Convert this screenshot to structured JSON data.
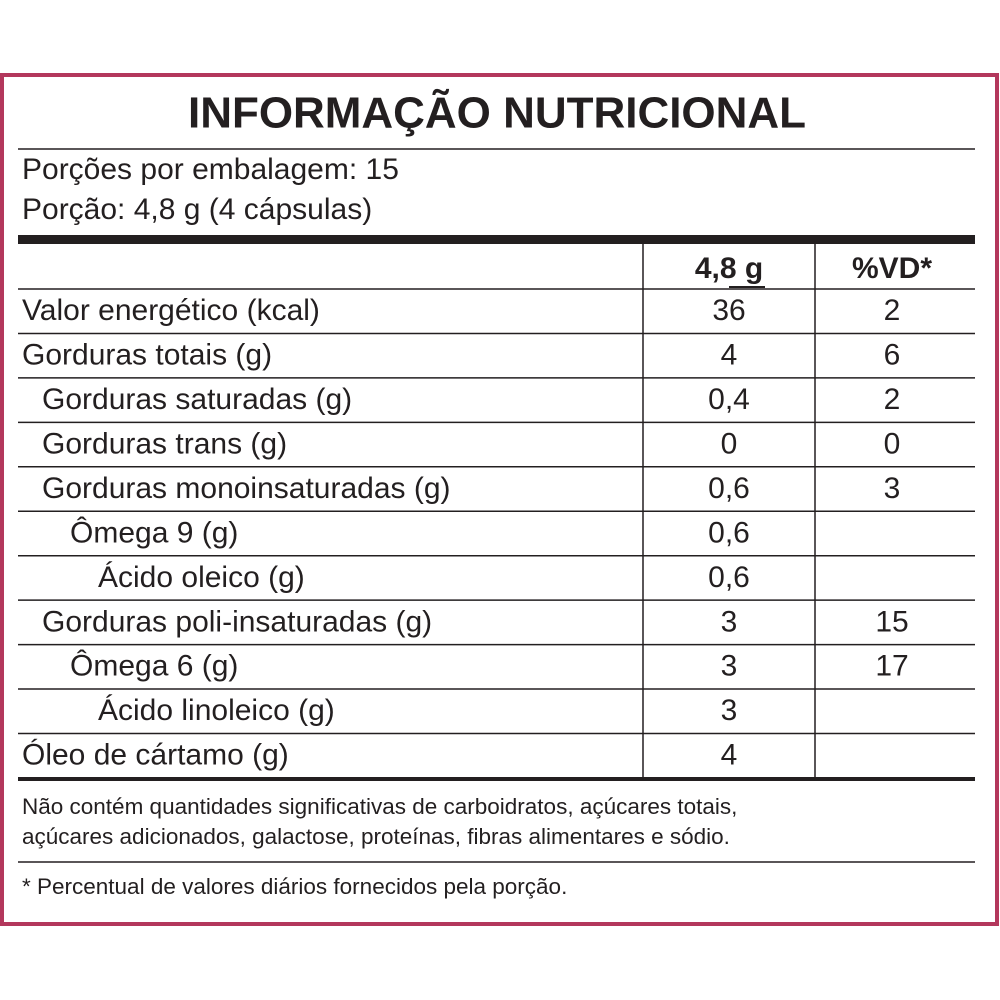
{
  "title": "INFORMAÇÃO NUTRICIONAL",
  "servings": [
    "Porções por embalagem: 15",
    "Porção: 4,8 g (4 cápsulas)"
  ],
  "table": {
    "header": [
      "4,8 g",
      "%VD*"
    ],
    "rows": [
      [
        "Valor energético (kcal)",
        "36",
        "2"
      ],
      [
        "Gorduras totais (g)",
        "4",
        "6"
      ],
      [
        "Gorduras saturadas (g)",
        "0,4",
        "2"
      ],
      [
        "Gorduras trans (g)",
        "0",
        "0"
      ],
      [
        "Gorduras monoinsaturadas (g)",
        "0,6",
        "3"
      ],
      [
        "Ômega 9 (g)",
        "0,6",
        null
      ],
      [
        "Ácido oleico (g)",
        "0,6",
        null
      ],
      [
        "Gorduras poli-insaturadas (g)",
        "3",
        "15"
      ],
      [
        "Ômega 6 (g)",
        "3",
        "17"
      ],
      [
        "Ácido linoleico (g)",
        "3",
        null
      ],
      [
        "Óleo de cártamo (g)",
        "4",
        null
      ]
    ]
  },
  "notes": [
    "Não contém quantidades significativas de carboidratos, açúcares totais,",
    "açúcares adicionados, galactose, proteínas, fibras alimentares e sódio.",
    "* Percentual de valores diários fornecidos pela porção."
  ]
}
